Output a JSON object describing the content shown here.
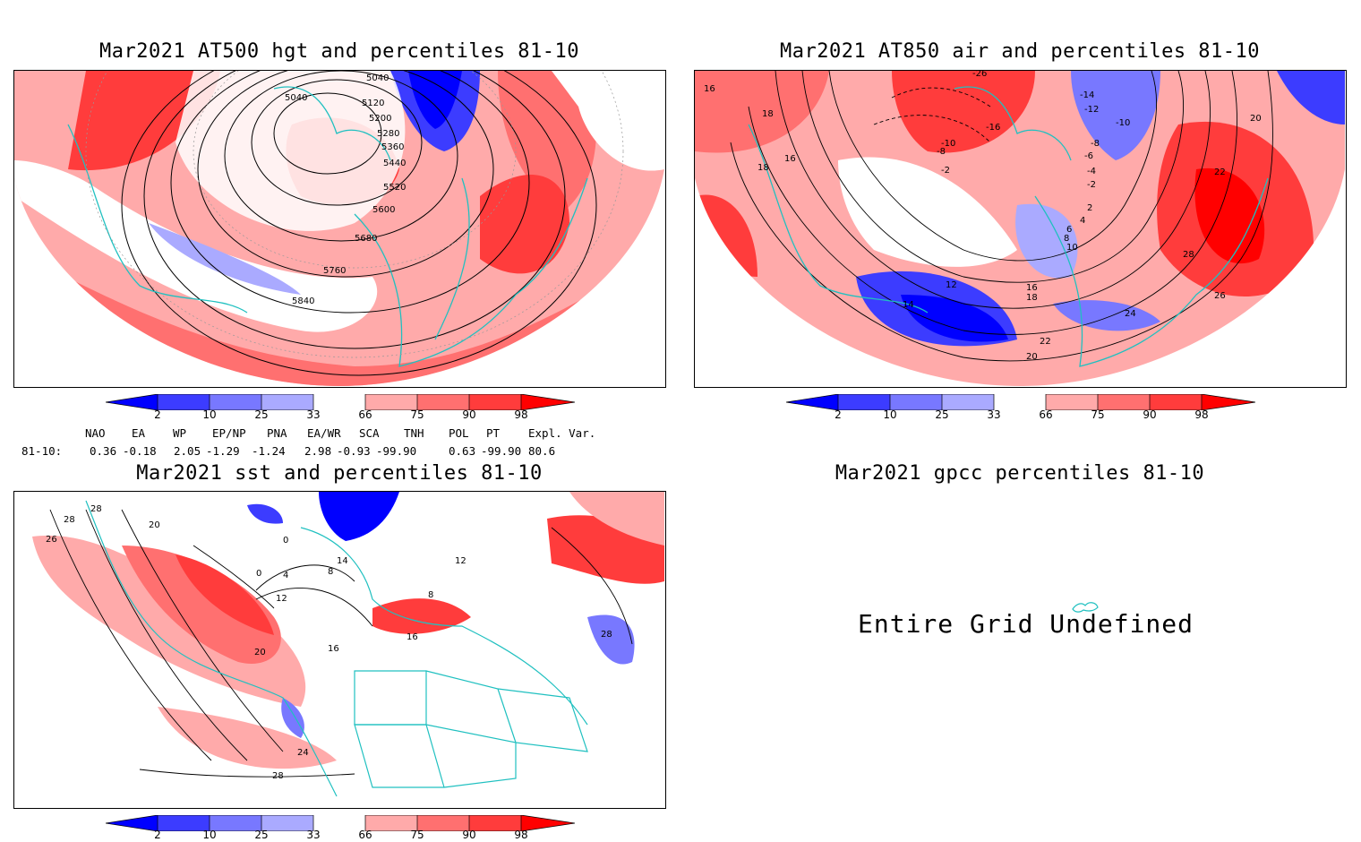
{
  "panels": {
    "hgt": {
      "title": "Mar2021 AT500 hgt and percentiles 81-10",
      "contour_labels": [
        "5040",
        "5040",
        "5120",
        "5200",
        "5280",
        "5360",
        "5440",
        "5520",
        "5600",
        "5680",
        "5760",
        "5840"
      ]
    },
    "air": {
      "title": "Mar2021 AT850 air and percentiles 81-10",
      "contour_labels": [
        "-26",
        "-14",
        "-12",
        "-10",
        "-8",
        "-6",
        "-4",
        "-2",
        "2",
        "4",
        "6",
        "8",
        "10",
        "12",
        "14",
        "16",
        "18",
        "20",
        "22",
        "24",
        "26",
        "28",
        "16",
        "18",
        "22",
        "18",
        "16",
        "20",
        "-16",
        "-10",
        "-8",
        "-2"
      ]
    },
    "sst": {
      "title": "Mar2021 sst and percentiles 81-10",
      "contour_labels": [
        "28",
        "28",
        "20",
        "26",
        "0",
        "0",
        "4",
        "8",
        "12",
        "14",
        "16",
        "20",
        "24",
        "28",
        "28",
        "12",
        "8",
        "16"
      ]
    },
    "gpcc": {
      "title": "Mar2021 gpcc percentiles 81-10",
      "message": "Entire Grid Undefined"
    }
  },
  "colorbar": {
    "ticks": [
      "2",
      "10",
      "25",
      "33",
      "66",
      "75",
      "90",
      "98"
    ],
    "colors": {
      "p2": "#0000ff",
      "p10": "#3c3cff",
      "p25": "#7878ff",
      "p33": "#aaaaff",
      "mid": "#ffffff",
      "p66": "#ffaaaa",
      "p75": "#ff7070",
      "p90": "#ff3c3c",
      "p98": "#ff0000"
    }
  },
  "teleconnections": {
    "header": [
      "NAO",
      "EA",
      "WP",
      "EP/NP",
      "PNA",
      "EA/WR",
      "SCA",
      "TNH",
      "POL",
      "PT",
      "Expl. Var."
    ],
    "row_label": "81-10:",
    "values": [
      "0.36",
      "-0.18",
      "2.05",
      "-1.29",
      "-1.24",
      "2.98",
      "-0.93",
      "-99.90",
      "0.63",
      "-99.90",
      "80.6"
    ]
  },
  "map_colors": {
    "coast": "#20c0c0",
    "contour": "#000000",
    "grid": "#999999"
  }
}
